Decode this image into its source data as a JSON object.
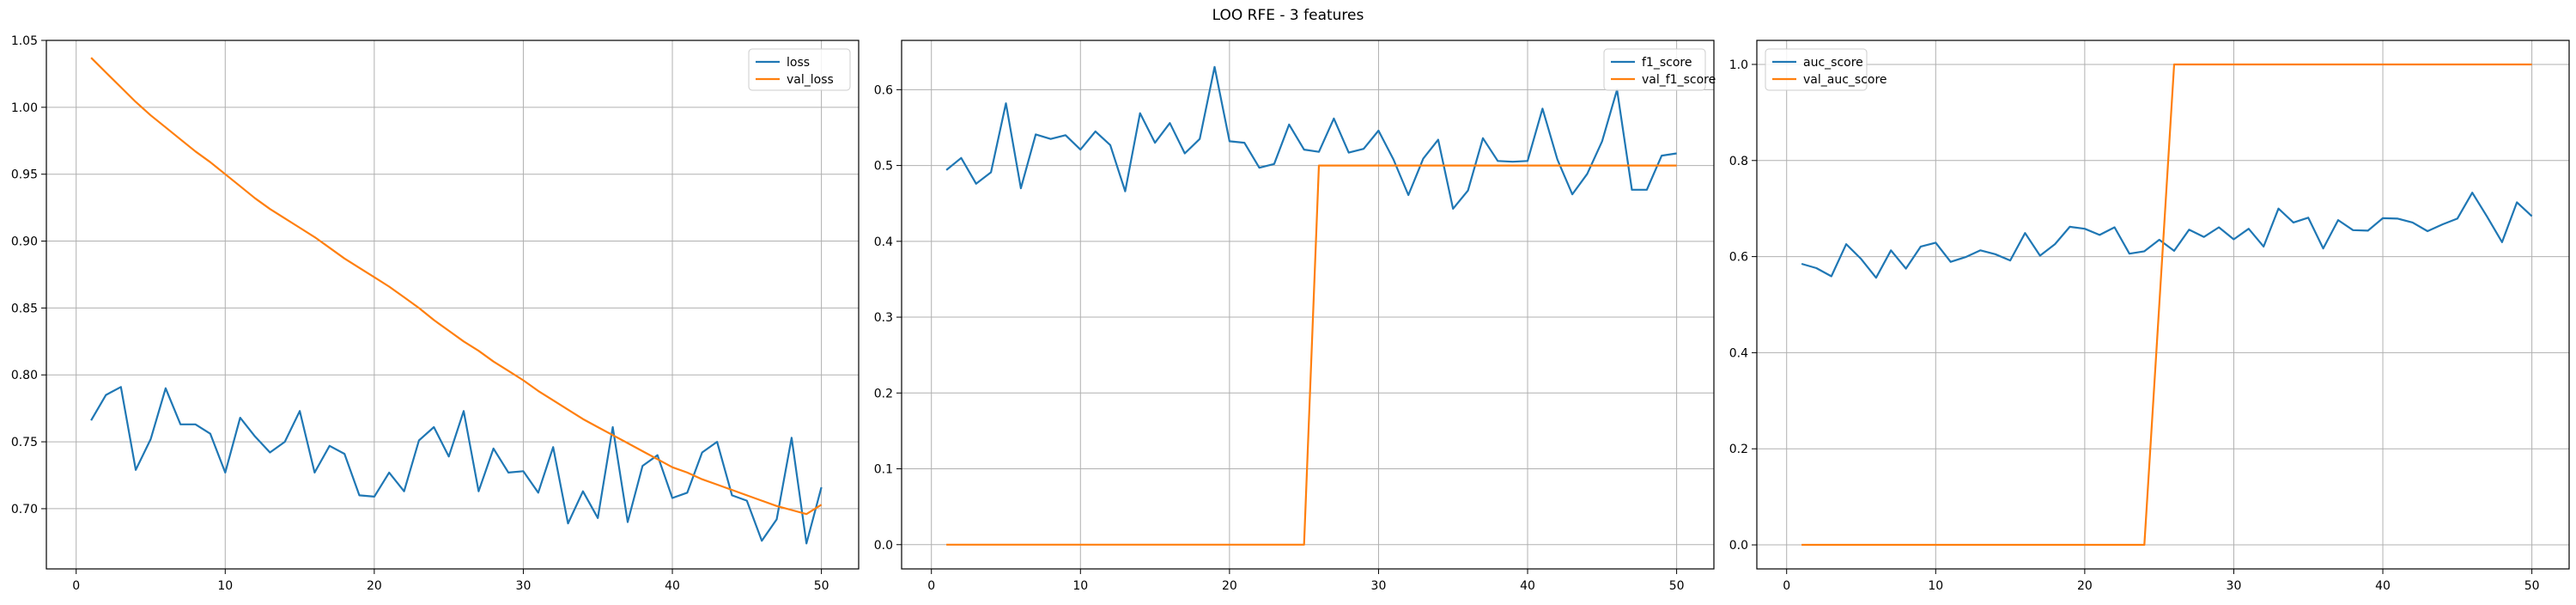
{
  "figure": {
    "title": "LOO RFE - 3 features"
  },
  "colors": {
    "blue": "#1f77b4",
    "orange": "#ff7f0e",
    "grid": "#b0b0b0",
    "axes": "#000000"
  },
  "chart_data": [
    {
      "type": "line",
      "xlim": [
        -2,
        52.5
      ],
      "ylim": [
        0.655,
        1.05
      ],
      "xticks": [
        0,
        10,
        20,
        30,
        40,
        50
      ],
      "yticks": [
        0.7,
        0.75,
        0.8,
        0.85,
        0.9,
        0.95,
        1.0,
        1.05
      ],
      "ytick_labels": [
        "0.70",
        "0.75",
        "0.80",
        "0.85",
        "0.90",
        "0.95",
        "1.00",
        "1.05"
      ],
      "grid": true,
      "legend": "upper-right",
      "series": [
        {
          "name": "loss",
          "color": "#1f77b4",
          "x": [
            1,
            2,
            3,
            4,
            5,
            6,
            7,
            8,
            9,
            10,
            11,
            12,
            13,
            14,
            15,
            16,
            17,
            18,
            19,
            20,
            21,
            22,
            23,
            24,
            25,
            26,
            27,
            28,
            29,
            30,
            31,
            32,
            33,
            34,
            35,
            36,
            37,
            38,
            39,
            40,
            41,
            42,
            43,
            44,
            45,
            46,
            47,
            48,
            49,
            50
          ],
          "y": [
            0.766,
            0.785,
            0.791,
            0.729,
            0.752,
            0.79,
            0.763,
            0.763,
            0.756,
            0.727,
            0.768,
            0.754,
            0.742,
            0.75,
            0.773,
            0.727,
            0.747,
            0.741,
            0.71,
            0.709,
            0.727,
            0.713,
            0.751,
            0.761,
            0.739,
            0.773,
            0.713,
            0.745,
            0.727,
            0.728,
            0.712,
            0.746,
            0.689,
            0.713,
            0.693,
            0.761,
            0.69,
            0.732,
            0.74,
            0.708,
            0.712,
            0.742,
            0.75,
            0.71,
            0.706,
            0.676,
            0.692,
            0.753,
            0.674,
            0.716
          ]
        },
        {
          "name": "val_loss",
          "color": "#ff7f0e",
          "x": [
            1,
            2,
            3,
            4,
            5,
            6,
            7,
            8,
            9,
            10,
            11,
            12,
            13,
            14,
            15,
            16,
            17,
            18,
            19,
            20,
            21,
            22,
            23,
            24,
            25,
            26,
            27,
            28,
            29,
            30,
            31,
            32,
            33,
            34,
            35,
            36,
            37,
            38,
            39,
            40,
            41,
            42,
            43,
            44,
            45,
            46,
            47,
            48,
            49,
            50
          ],
          "y": [
            1.037,
            1.026,
            1.015,
            1.004,
            0.994,
            0.985,
            0.976,
            0.967,
            0.959,
            0.95,
            0.941,
            0.932,
            0.924,
            0.917,
            0.91,
            0.903,
            0.895,
            0.887,
            0.88,
            0.873,
            0.866,
            0.858,
            0.85,
            0.841,
            0.833,
            0.825,
            0.818,
            0.81,
            0.803,
            0.796,
            0.788,
            0.781,
            0.774,
            0.767,
            0.761,
            0.755,
            0.749,
            0.743,
            0.737,
            0.731,
            0.727,
            0.722,
            0.718,
            0.714,
            0.71,
            0.706,
            0.702,
            0.699,
            0.696,
            0.703
          ]
        }
      ]
    },
    {
      "type": "line",
      "xlim": [
        -2,
        52.5
      ],
      "ylim": [
        -0.032,
        0.665
      ],
      "xticks": [
        0,
        10,
        20,
        30,
        40,
        50
      ],
      "yticks": [
        0.0,
        0.1,
        0.2,
        0.3,
        0.4,
        0.5,
        0.6
      ],
      "ytick_labels": [
        "0.0",
        "0.1",
        "0.2",
        "0.3",
        "0.4",
        "0.5",
        "0.6"
      ],
      "grid": true,
      "legend": "upper-right",
      "series": [
        {
          "name": "f1_score",
          "color": "#1f77b4",
          "x": [
            1,
            2,
            3,
            4,
            5,
            6,
            7,
            8,
            9,
            10,
            11,
            12,
            13,
            14,
            15,
            16,
            17,
            18,
            19,
            20,
            21,
            22,
            23,
            24,
            25,
            26,
            27,
            28,
            29,
            30,
            31,
            32,
            33,
            34,
            35,
            36,
            37,
            38,
            39,
            40,
            41,
            42,
            43,
            44,
            45,
            46,
            47,
            48,
            49,
            50
          ],
          "y": [
            0.494,
            0.51,
            0.476,
            0.491,
            0.582,
            0.47,
            0.541,
            0.535,
            0.54,
            0.521,
            0.545,
            0.527,
            0.466,
            0.569,
            0.53,
            0.556,
            0.516,
            0.535,
            0.63,
            0.532,
            0.53,
            0.497,
            0.502,
            0.554,
            0.521,
            0.518,
            0.562,
            0.517,
            0.522,
            0.546,
            0.508,
            0.461,
            0.509,
            0.534,
            0.443,
            0.467,
            0.536,
            0.506,
            0.505,
            0.506,
            0.575,
            0.508,
            0.462,
            0.489,
            0.532,
            0.6,
            0.468,
            0.468,
            0.513,
            0.516
          ]
        },
        {
          "name": "val_f1_score",
          "color": "#ff7f0e",
          "x": [
            1,
            2,
            3,
            4,
            5,
            6,
            7,
            8,
            9,
            10,
            11,
            12,
            13,
            14,
            15,
            16,
            17,
            18,
            19,
            20,
            21,
            22,
            23,
            24,
            25,
            26,
            27,
            28,
            29,
            30,
            31,
            32,
            33,
            34,
            35,
            36,
            37,
            38,
            39,
            40,
            41,
            42,
            43,
            44,
            45,
            46,
            47,
            48,
            49,
            50
          ],
          "y": [
            0,
            0,
            0,
            0,
            0,
            0,
            0,
            0,
            0,
            0,
            0,
            0,
            0,
            0,
            0,
            0,
            0,
            0,
            0,
            0,
            0,
            0,
            0,
            0,
            0,
            0.5,
            0.5,
            0.5,
            0.5,
            0.5,
            0.5,
            0.5,
            0.5,
            0.5,
            0.5,
            0.5,
            0.5,
            0.5,
            0.5,
            0.5,
            0.5,
            0.5,
            0.5,
            0.5,
            0.5,
            0.5,
            0.5,
            0.5,
            0.5,
            0.5
          ]
        }
      ]
    },
    {
      "type": "line",
      "xlim": [
        -2,
        52.5
      ],
      "ylim": [
        -0.05,
        1.05
      ],
      "xticks": [
        0,
        10,
        20,
        30,
        40,
        50
      ],
      "yticks": [
        0.0,
        0.2,
        0.4,
        0.6,
        0.8,
        1.0
      ],
      "ytick_labels": [
        "0.0",
        "0.2",
        "0.4",
        "0.6",
        "0.8",
        "1.0"
      ],
      "grid": true,
      "legend": "upper-left",
      "series": [
        {
          "name": "auc_score",
          "color": "#1f77b4",
          "x": [
            1,
            2,
            3,
            4,
            5,
            6,
            7,
            8,
            9,
            10,
            11,
            12,
            13,
            14,
            15,
            16,
            17,
            18,
            19,
            20,
            21,
            22,
            23,
            24,
            25,
            26,
            27,
            28,
            29,
            30,
            31,
            32,
            33,
            34,
            35,
            36,
            37,
            38,
            39,
            40,
            41,
            42,
            43,
            44,
            45,
            46,
            47,
            48,
            49,
            50
          ],
          "y": [
            0.585,
            0.576,
            0.559,
            0.626,
            0.595,
            0.556,
            0.613,
            0.575,
            0.621,
            0.629,
            0.589,
            0.599,
            0.613,
            0.605,
            0.592,
            0.649,
            0.602,
            0.626,
            0.662,
            0.658,
            0.645,
            0.661,
            0.606,
            0.611,
            0.635,
            0.612,
            0.656,
            0.641,
            0.661,
            0.636,
            0.658,
            0.621,
            0.7,
            0.671,
            0.681,
            0.617,
            0.676,
            0.655,
            0.654,
            0.68,
            0.679,
            0.671,
            0.653,
            0.667,
            0.679,
            0.733,
            0.683,
            0.63,
            0.713,
            0.684
          ]
        },
        {
          "name": "val_auc_score",
          "color": "#ff7f0e",
          "x": [
            1,
            2,
            3,
            4,
            5,
            6,
            7,
            8,
            9,
            10,
            11,
            12,
            13,
            14,
            15,
            16,
            17,
            18,
            19,
            20,
            21,
            22,
            23,
            24,
            25,
            26,
            27,
            28,
            29,
            30,
            31,
            32,
            33,
            34,
            35,
            36,
            37,
            38,
            39,
            40,
            41,
            42,
            43,
            44,
            45,
            46,
            47,
            48,
            49,
            50
          ],
          "y": [
            0,
            0,
            0,
            0,
            0,
            0,
            0,
            0,
            0,
            0,
            0,
            0,
            0,
            0,
            0,
            0,
            0,
            0,
            0,
            0,
            0,
            0,
            0,
            0,
            0.5,
            1,
            1,
            1,
            1,
            1,
            1,
            1,
            1,
            1,
            1,
            1,
            1,
            1,
            1,
            1,
            1,
            1,
            1,
            1,
            1,
            1,
            1,
            1,
            1,
            1
          ]
        }
      ]
    }
  ]
}
